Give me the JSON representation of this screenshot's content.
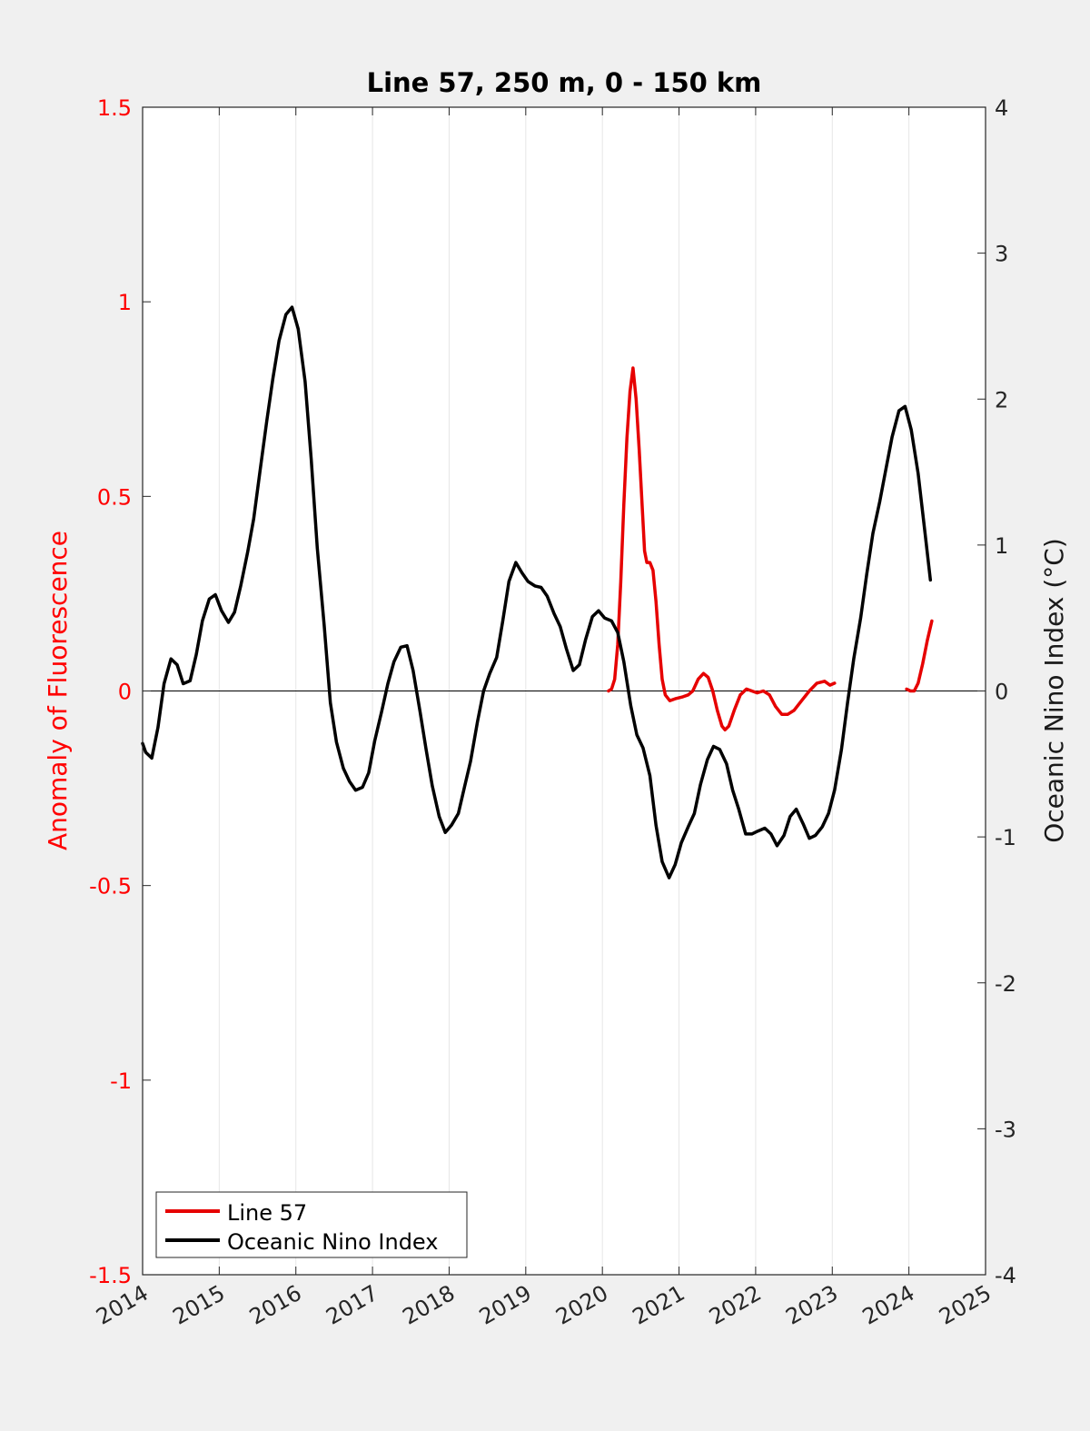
{
  "chart_data": {
    "type": "line",
    "title": "Line 57, 250 m, 0 - 150 km",
    "ylabel_left": "Anomaly of Fluorescence",
    "ylabel_right": "Oceanic Nino Index (°C)",
    "xlim": [
      2014,
      2025
    ],
    "ylim_left": [
      -1.5,
      1.5
    ],
    "ylim_right": [
      -4,
      4
    ],
    "x_ticks": [
      2014,
      2015,
      2016,
      2017,
      2018,
      2019,
      2020,
      2021,
      2022,
      2023,
      2024,
      2025
    ],
    "x_tick_labels": [
      "2014",
      "2015",
      "2016",
      "2017",
      "2018",
      "2019",
      "2020",
      "2021",
      "2022",
      "2023",
      "2024",
      "2025"
    ],
    "y_left_ticks": [
      1.5,
      1,
      0.5,
      0,
      -0.5,
      -1,
      -1.5
    ],
    "y_left_tick_labels": [
      "1.5",
      "1",
      "0.5",
      "0",
      "-0.5",
      "-1",
      "-1.5"
    ],
    "y_right_ticks": [
      4,
      3,
      2,
      1,
      0,
      -1,
      -2,
      -3,
      -4
    ],
    "y_right_tick_labels": [
      "4",
      "3",
      "2",
      "1",
      "0",
      "-1",
      "-2",
      "-3",
      "-4"
    ],
    "grid": "vertical",
    "zero_line": true,
    "legend_position": "bottom-left",
    "colors": {
      "left_axis": "#ff0000",
      "line57": "#e60000",
      "oni": "#000000",
      "background": "#f0f0f0",
      "plot_area": "#ffffff",
      "grid": "#e6e6e6"
    },
    "series": [
      {
        "name": "Line 57",
        "axis": "left",
        "color": "#e60000",
        "segments": [
          [
            [
              2020.08,
              0.0
            ],
            [
              2020.12,
              0.005
            ],
            [
              2020.16,
              0.03
            ],
            [
              2020.2,
              0.12
            ],
            [
              2020.24,
              0.28
            ],
            [
              2020.28,
              0.48
            ],
            [
              2020.32,
              0.65
            ],
            [
              2020.36,
              0.77
            ],
            [
              2020.4,
              0.83
            ],
            [
              2020.44,
              0.75
            ],
            [
              2020.48,
              0.62
            ],
            [
              2020.52,
              0.47
            ],
            [
              2020.55,
              0.36
            ],
            [
              2020.58,
              0.33
            ],
            [
              2020.62,
              0.33
            ],
            [
              2020.66,
              0.31
            ],
            [
              2020.7,
              0.23
            ],
            [
              2020.74,
              0.12
            ],
            [
              2020.78,
              0.03
            ],
            [
              2020.82,
              -0.01
            ],
            [
              2020.88,
              -0.025
            ],
            [
              2020.95,
              -0.02
            ],
            [
              2021.05,
              -0.015
            ],
            [
              2021.12,
              -0.01
            ],
            [
              2021.18,
              0.0
            ],
            [
              2021.25,
              0.03
            ],
            [
              2021.32,
              0.045
            ],
            [
              2021.38,
              0.035
            ],
            [
              2021.44,
              0.0
            ],
            [
              2021.5,
              -0.05
            ],
            [
              2021.56,
              -0.09
            ],
            [
              2021.6,
              -0.1
            ],
            [
              2021.65,
              -0.09
            ],
            [
              2021.72,
              -0.05
            ],
            [
              2021.8,
              -0.01
            ],
            [
              2021.88,
              0.005
            ],
            [
              2021.95,
              0.0
            ],
            [
              2022.02,
              -0.005
            ],
            [
              2022.1,
              0.0
            ],
            [
              2022.18,
              -0.01
            ],
            [
              2022.26,
              -0.04
            ],
            [
              2022.34,
              -0.06
            ],
            [
              2022.42,
              -0.06
            ],
            [
              2022.5,
              -0.05
            ],
            [
              2022.6,
              -0.025
            ],
            [
              2022.7,
              0.0
            ],
            [
              2022.8,
              0.02
            ],
            [
              2022.9,
              0.025
            ],
            [
              2022.97,
              0.015
            ],
            [
              2023.03,
              0.02
            ]
          ],
          [
            [
              2023.97,
              0.005
            ],
            [
              2024.02,
              0.0
            ],
            [
              2024.07,
              0.0
            ],
            [
              2024.12,
              0.02
            ],
            [
              2024.18,
              0.07
            ],
            [
              2024.24,
              0.13
            ],
            [
              2024.3,
              0.18
            ]
          ]
        ]
      },
      {
        "name": "Oceanic Nino Index",
        "axis": "right",
        "color": "#000000",
        "segments": [
          [
            [
              2014.0,
              -0.36
            ],
            [
              2014.04,
              -0.42
            ],
            [
              2014.12,
              -0.46
            ],
            [
              2014.2,
              -0.25
            ],
            [
              2014.28,
              0.05
            ],
            [
              2014.37,
              0.22
            ],
            [
              2014.45,
              0.18
            ],
            [
              2014.53,
              0.05
            ],
            [
              2014.62,
              0.07
            ],
            [
              2014.7,
              0.25
            ],
            [
              2014.78,
              0.48
            ],
            [
              2014.87,
              0.63
            ],
            [
              2014.95,
              0.66
            ],
            [
              2015.03,
              0.55
            ],
            [
              2015.12,
              0.47
            ],
            [
              2015.2,
              0.54
            ],
            [
              2015.28,
              0.72
            ],
            [
              2015.37,
              0.95
            ],
            [
              2015.45,
              1.18
            ],
            [
              2015.53,
              1.5
            ],
            [
              2015.62,
              1.85
            ],
            [
              2015.7,
              2.14
            ],
            [
              2015.78,
              2.4
            ],
            [
              2015.87,
              2.58
            ],
            [
              2015.95,
              2.63
            ],
            [
              2016.03,
              2.48
            ],
            [
              2016.12,
              2.12
            ],
            [
              2016.2,
              1.59
            ],
            [
              2016.28,
              0.98
            ],
            [
              2016.37,
              0.45
            ],
            [
              2016.45,
              -0.08
            ],
            [
              2016.53,
              -0.35
            ],
            [
              2016.62,
              -0.53
            ],
            [
              2016.7,
              -0.62
            ],
            [
              2016.78,
              -0.68
            ],
            [
              2016.87,
              -0.66
            ],
            [
              2016.95,
              -0.56
            ],
            [
              2017.03,
              -0.34
            ],
            [
              2017.12,
              -0.14
            ],
            [
              2017.2,
              0.05
            ],
            [
              2017.28,
              0.2
            ],
            [
              2017.37,
              0.3
            ],
            [
              2017.45,
              0.31
            ],
            [
              2017.53,
              0.14
            ],
            [
              2017.62,
              -0.14
            ],
            [
              2017.7,
              -0.4
            ],
            [
              2017.78,
              -0.65
            ],
            [
              2017.87,
              -0.86
            ],
            [
              2017.95,
              -0.97
            ],
            [
              2018.03,
              -0.92
            ],
            [
              2018.12,
              -0.84
            ],
            [
              2018.2,
              -0.66
            ],
            [
              2018.28,
              -0.48
            ],
            [
              2018.37,
              -0.21
            ],
            [
              2018.45,
              0.0
            ],
            [
              2018.53,
              0.12
            ],
            [
              2018.62,
              0.23
            ],
            [
              2018.7,
              0.48
            ],
            [
              2018.78,
              0.75
            ],
            [
              2018.87,
              0.88
            ],
            [
              2018.95,
              0.81
            ],
            [
              2019.03,
              0.75
            ],
            [
              2019.12,
              0.72
            ],
            [
              2019.2,
              0.71
            ],
            [
              2019.28,
              0.65
            ],
            [
              2019.37,
              0.53
            ],
            [
              2019.45,
              0.44
            ],
            [
              2019.53,
              0.29
            ],
            [
              2019.62,
              0.14
            ],
            [
              2019.7,
              0.18
            ],
            [
              2019.78,
              0.35
            ],
            [
              2019.87,
              0.51
            ],
            [
              2019.95,
              0.55
            ],
            [
              2020.03,
              0.5
            ],
            [
              2020.12,
              0.48
            ],
            [
              2020.2,
              0.4
            ],
            [
              2020.28,
              0.2
            ],
            [
              2020.37,
              -0.1
            ],
            [
              2020.45,
              -0.3
            ],
            [
              2020.53,
              -0.39
            ],
            [
              2020.62,
              -0.58
            ],
            [
              2020.7,
              -0.92
            ],
            [
              2020.78,
              -1.17
            ],
            [
              2020.87,
              -1.28
            ],
            [
              2020.95,
              -1.19
            ],
            [
              2021.03,
              -1.04
            ],
            [
              2021.12,
              -0.93
            ],
            [
              2021.2,
              -0.84
            ],
            [
              2021.28,
              -0.64
            ],
            [
              2021.37,
              -0.47
            ],
            [
              2021.45,
              -0.38
            ],
            [
              2021.53,
              -0.4
            ],
            [
              2021.62,
              -0.5
            ],
            [
              2021.7,
              -0.68
            ],
            [
              2021.78,
              -0.81
            ],
            [
              2021.87,
              -0.98
            ],
            [
              2021.95,
              -0.98
            ],
            [
              2022.03,
              -0.96
            ],
            [
              2022.12,
              -0.94
            ],
            [
              2022.2,
              -0.98
            ],
            [
              2022.28,
              -1.06
            ],
            [
              2022.37,
              -0.99
            ],
            [
              2022.45,
              -0.86
            ],
            [
              2022.53,
              -0.81
            ],
            [
              2022.62,
              -0.91
            ],
            [
              2022.7,
              -1.01
            ],
            [
              2022.78,
              -0.99
            ],
            [
              2022.87,
              -0.93
            ],
            [
              2022.95,
              -0.84
            ],
            [
              2023.03,
              -0.68
            ],
            [
              2023.12,
              -0.4
            ],
            [
              2023.2,
              -0.08
            ],
            [
              2023.28,
              0.22
            ],
            [
              2023.37,
              0.5
            ],
            [
              2023.45,
              0.8
            ],
            [
              2023.53,
              1.08
            ],
            [
              2023.62,
              1.3
            ],
            [
              2023.7,
              1.52
            ],
            [
              2023.78,
              1.74
            ],
            [
              2023.87,
              1.92
            ],
            [
              2023.95,
              1.95
            ],
            [
              2024.03,
              1.79
            ],
            [
              2024.12,
              1.49
            ],
            [
              2024.2,
              1.13
            ],
            [
              2024.28,
              0.76
            ]
          ]
        ]
      }
    ]
  }
}
